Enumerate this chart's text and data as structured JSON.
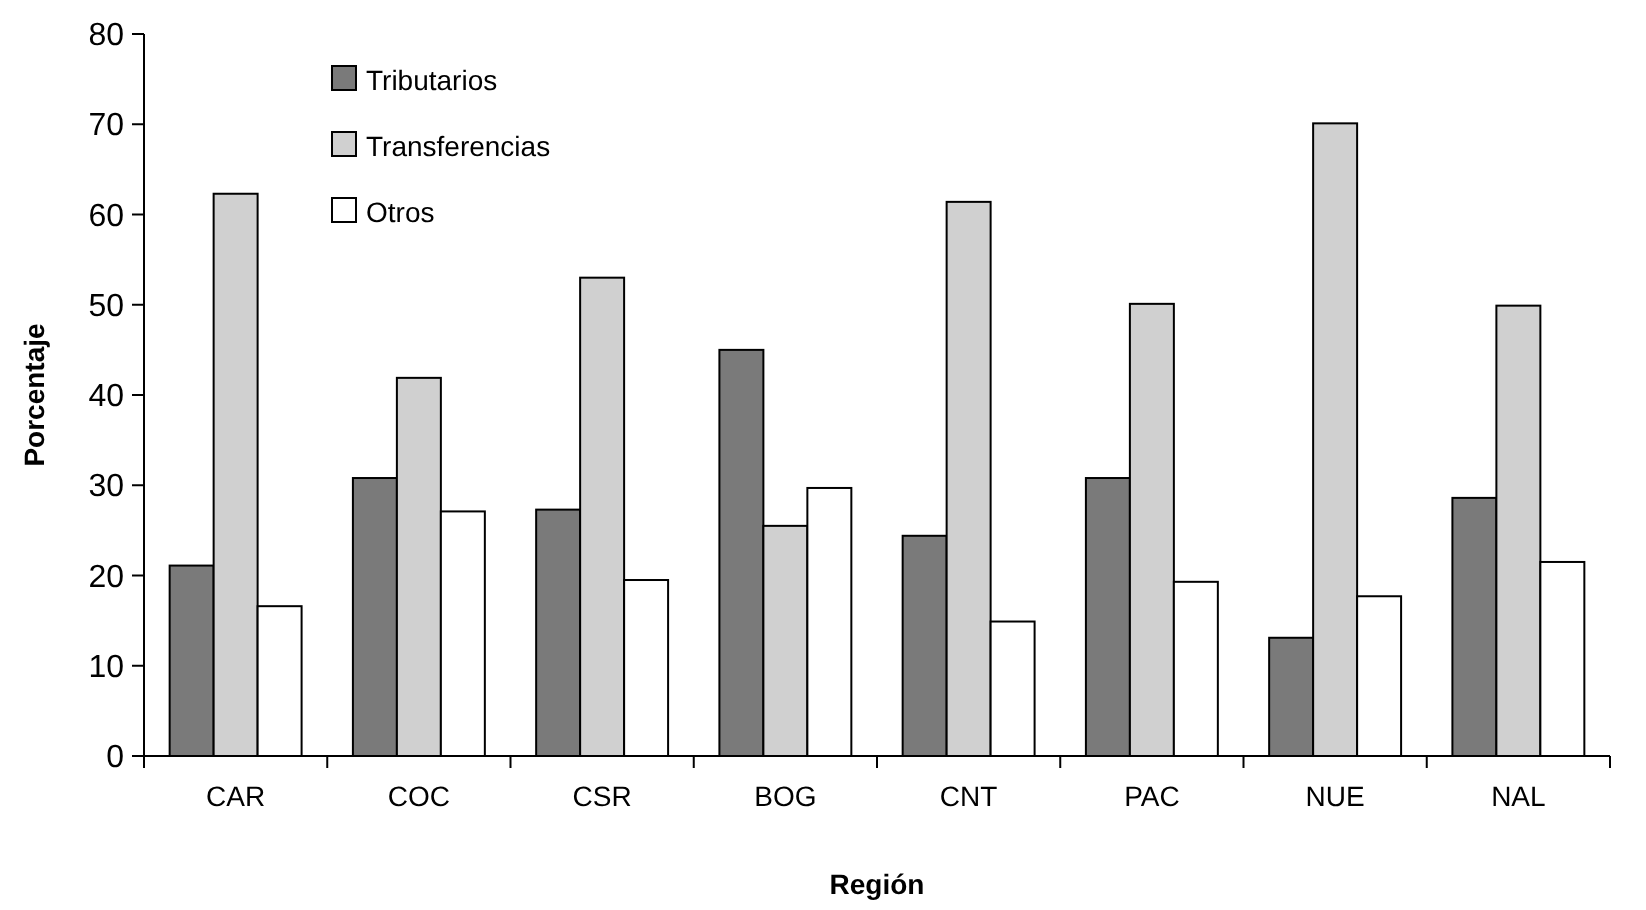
{
  "chart_data": {
    "type": "bar",
    "xlabel": "Región",
    "ylabel": "Porcentaje",
    "categories": [
      "CAR",
      "COC",
      "CSR",
      "BOG",
      "CNT",
      "PAC",
      "NUE",
      "NAL"
    ],
    "series": [
      {
        "name": "Tributarios",
        "color": "#7a7a7a",
        "values": [
          21.1,
          30.8,
          27.3,
          45.0,
          24.4,
          30.8,
          13.1,
          28.6
        ]
      },
      {
        "name": "Transferencias",
        "color": "#d0d0d0",
        "values": [
          62.3,
          41.9,
          53.0,
          25.5,
          61.4,
          50.1,
          70.1,
          49.9
        ]
      },
      {
        "name": "Otros",
        "color": "#ffffff",
        "values": [
          16.6,
          27.1,
          19.5,
          29.7,
          14.9,
          19.3,
          17.7,
          21.5
        ]
      }
    ],
    "ylim": [
      0,
      80
    ],
    "yticks": [
      0,
      10,
      20,
      30,
      40,
      50,
      60,
      70,
      80
    ],
    "grid": false,
    "legend": "top left"
  }
}
